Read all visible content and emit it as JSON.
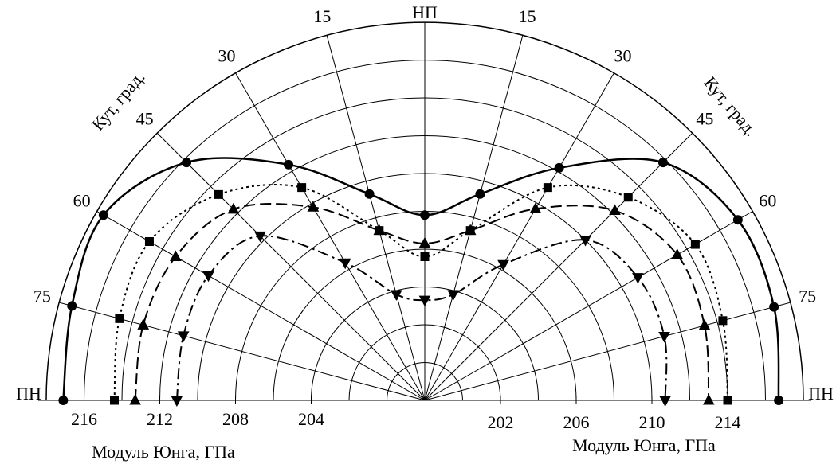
{
  "chart_data": {
    "type": "polar",
    "pole_label": "НП",
    "equator_label": "ПН",
    "angle_axis_label": "Кут, град.",
    "radial_axis_label": "Модуль Юнга, ГПа",
    "theta": [
      -90,
      -75,
      -60,
      -45,
      -30,
      -15,
      0,
      15,
      30,
      45,
      60,
      75,
      90
    ],
    "theta_ticks": [
      {
        "value": -75,
        "label": "75"
      },
      {
        "value": -60,
        "label": "60"
      },
      {
        "value": -45,
        "label": "45"
      },
      {
        "value": -30,
        "label": "30"
      },
      {
        "value": -15,
        "label": "15"
      },
      15,
      30,
      45,
      60,
      75
    ],
    "rlim": [
      198,
      218
    ],
    "rgrid": [
      200,
      202,
      204,
      206,
      208,
      210,
      212,
      214,
      216,
      218
    ],
    "rticks_left": [
      204,
      208,
      212,
      216
    ],
    "rticks_right": [
      202,
      206,
      210,
      214
    ],
    "series": [
      {
        "color": "#000000",
        "line_style": "solid",
        "marker": "circle",
        "values": [
          217.1,
          217.3,
          217.6,
          215.8,
          212.4,
          209.3,
          207.8,
          209.3,
          212.2,
          215.8,
          217.1,
          217.1,
          216.7
        ]
      },
      {
        "color": "#000000",
        "line_style": "dotted",
        "marker": "square",
        "values": [
          214.4,
          214.7,
          214.8,
          213.4,
          211.0,
          207.3,
          205.6,
          207.3,
          211.0,
          213.2,
          214.5,
          214.3,
          214.0
        ]
      },
      {
        "color": "#000000",
        "line_style": "dashed",
        "marker": "triangle-up",
        "values": [
          213.3,
          213.4,
          213.2,
          212.3,
          209.8,
          207.3,
          206.3,
          207.3,
          209.7,
          212.2,
          213.4,
          213.3,
          213.0
        ]
      },
      {
        "color": "#000000",
        "line_style": "dashdot",
        "marker": "triangle-down",
        "values": [
          211.1,
          211.2,
          211.2,
          210.3,
          206.4,
          203.8,
          203.3,
          203.8,
          206.3,
          210.0,
          211.0,
          211.1,
          210.7
        ]
      }
    ]
  }
}
